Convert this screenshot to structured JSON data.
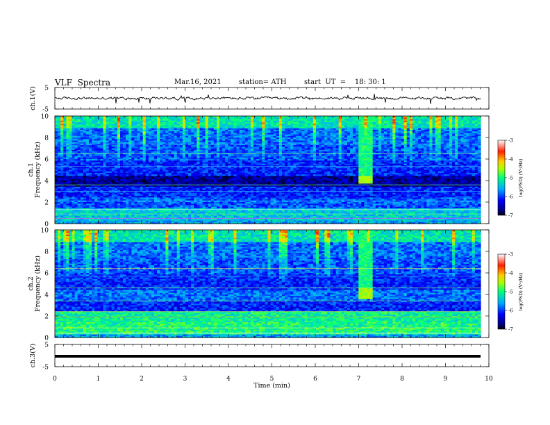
{
  "header": {
    "title": "VLF  Spectra",
    "date": "Mar.16, 2021",
    "station": "station= ATH",
    "start_ut": "start  UT  =    18: 30: 1"
  },
  "chart_data": [
    {
      "type": "line",
      "panel": "ch1-waveform",
      "ylabel": "ch.1(V)",
      "ylim": [
        -5,
        5
      ],
      "yticks": [
        5,
        -5
      ],
      "xlim": [
        0,
        10
      ],
      "note": "noisy trace centred near 0 V, amplitude about ±1 V, with occasional short spikes"
    },
    {
      "type": "heatmap",
      "panel": "ch1-spectrogram",
      "ylabel": "ch.1\nFrequency  (kHz)",
      "ylim": [
        0,
        10
      ],
      "yticks": [
        0,
        2,
        4,
        6,
        8,
        10
      ],
      "xlim": [
        0,
        10
      ],
      "colorbar": {
        "label": "log(PSD) (V²/Hz)",
        "range": [
          -7,
          -3
        ],
        "ticks": [
          -3,
          -4,
          -5,
          -6,
          -7
        ]
      },
      "features": [
        {
          "t_start": 7.0,
          "t_end": 7.3,
          "f_low": 3.7,
          "f_high": 4.4,
          "level": -4.5
        },
        {
          "t_start": 7.0,
          "t_end": 7.3,
          "f_low": 4.4,
          "f_high": 10,
          "level": -5
        }
      ]
    },
    {
      "type": "heatmap",
      "panel": "ch2-spectrogram",
      "ylabel": "ch.2\nFrequency  (kHz)",
      "ylim": [
        0,
        10
      ],
      "yticks": [
        0,
        2,
        4,
        6,
        8,
        10
      ],
      "xlim": [
        0,
        10
      ],
      "colorbar": {
        "label": "log(PSD) (V²/Hz)",
        "range": [
          -7,
          -3
        ],
        "ticks": [
          -3,
          -4,
          -5,
          -6,
          -7
        ]
      },
      "features": [
        {
          "t_start": 7.0,
          "t_end": 7.3,
          "f_low": 3.6,
          "f_high": 4.5,
          "level": -4.5
        },
        {
          "t_start": 7.0,
          "t_end": 7.3,
          "f_low": 4.5,
          "f_high": 10,
          "level": -5
        }
      ]
    },
    {
      "type": "line",
      "panel": "ch3-waveform",
      "ylabel": "ch.3(V)",
      "ylim": [
        -5,
        5
      ],
      "yticks": [
        5,
        -5
      ],
      "xlim": [
        0,
        10
      ],
      "xlabel": "Time  (min)",
      "xticks": [
        0,
        1,
        2,
        3,
        4,
        5,
        6,
        7,
        8,
        9,
        10
      ],
      "note": "flat thick trace at about 0 V"
    }
  ]
}
